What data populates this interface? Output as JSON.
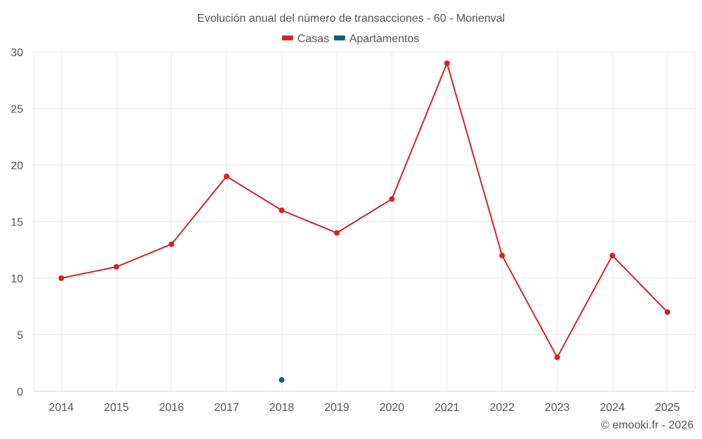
{
  "chart_data": {
    "type": "line",
    "title": "Evolución anual del número de transacciones - 60 - Morienval",
    "categories": [
      "2014",
      "2015",
      "2016",
      "2017",
      "2018",
      "2019",
      "2020",
      "2021",
      "2022",
      "2023",
      "2024",
      "2025"
    ],
    "series": [
      {
        "name": "Casas",
        "color": "#d2232a",
        "values": [
          10,
          11,
          13,
          19,
          16,
          14,
          17,
          29,
          12,
          3,
          12,
          7
        ]
      },
      {
        "name": "Apartamentos",
        "color": "#005f8c",
        "values": [
          null,
          null,
          null,
          null,
          1,
          null,
          null,
          null,
          null,
          null,
          null,
          null
        ]
      }
    ],
    "ylim": [
      0,
      30
    ],
    "yticks": [
      0,
      5,
      10,
      15,
      20,
      25,
      30
    ],
    "xlabel": "",
    "ylabel": "",
    "grid": true,
    "legend_position": "top-center"
  },
  "credit": "© emooki.fr - 2026"
}
